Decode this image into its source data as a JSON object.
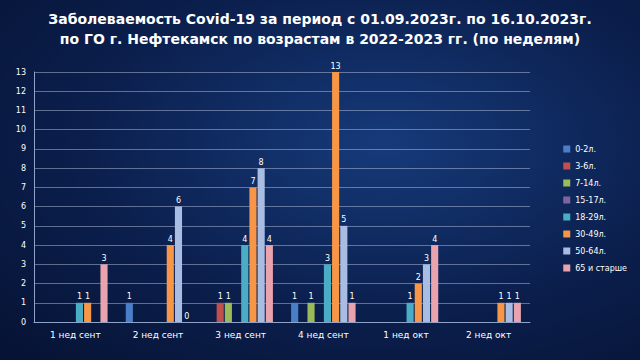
{
  "chart_data": {
    "type": "bar",
    "title": "Заболеваемость Covid-19 за период с 01.09.2023г. по 16.10.2023г.\nпо ГО г. Нефтекамск по возрастам в 2022-2023 гг. (по неделям)",
    "categories": [
      "1 нед сент",
      "2 нед сент",
      "3 нед сент",
      "4 нед сент",
      "1 нед окт",
      "2 нед окт"
    ],
    "series": [
      {
        "name": "0-2л.",
        "color": "#4a7ec8",
        "values": [
          null,
          1,
          null,
          1,
          null,
          null
        ]
      },
      {
        "name": "3-6л.",
        "color": "#c0504d",
        "values": [
          null,
          null,
          1,
          null,
          null,
          null
        ]
      },
      {
        "name": "7-14л.",
        "color": "#9bbb59",
        "values": [
          null,
          null,
          1,
          1,
          null,
          null
        ]
      },
      {
        "name": "15-17л.",
        "color": "#8064a2",
        "values": [
          null,
          null,
          null,
          null,
          null,
          null
        ]
      },
      {
        "name": "18-29л.",
        "color": "#4bacc6",
        "values": [
          1,
          null,
          4,
          3,
          1,
          null
        ]
      },
      {
        "name": "30-49л.",
        "color": "#f79646",
        "values": [
          1,
          4,
          7,
          13,
          2,
          1
        ]
      },
      {
        "name": "50-64л.",
        "color": "#a9bde3",
        "values": [
          null,
          6,
          8,
          5,
          3,
          1
        ]
      },
      {
        "name": "65 и старше",
        "color": "#e8a3ae",
        "values": [
          3,
          0,
          4,
          1,
          4,
          1
        ]
      }
    ],
    "ylim": [
      0,
      13
    ],
    "yticks": [
      0,
      1,
      2,
      3,
      4,
      5,
      6,
      7,
      8,
      9,
      10,
      11,
      12,
      13
    ],
    "grid": true,
    "legend": "right",
    "data_labels": true
  }
}
